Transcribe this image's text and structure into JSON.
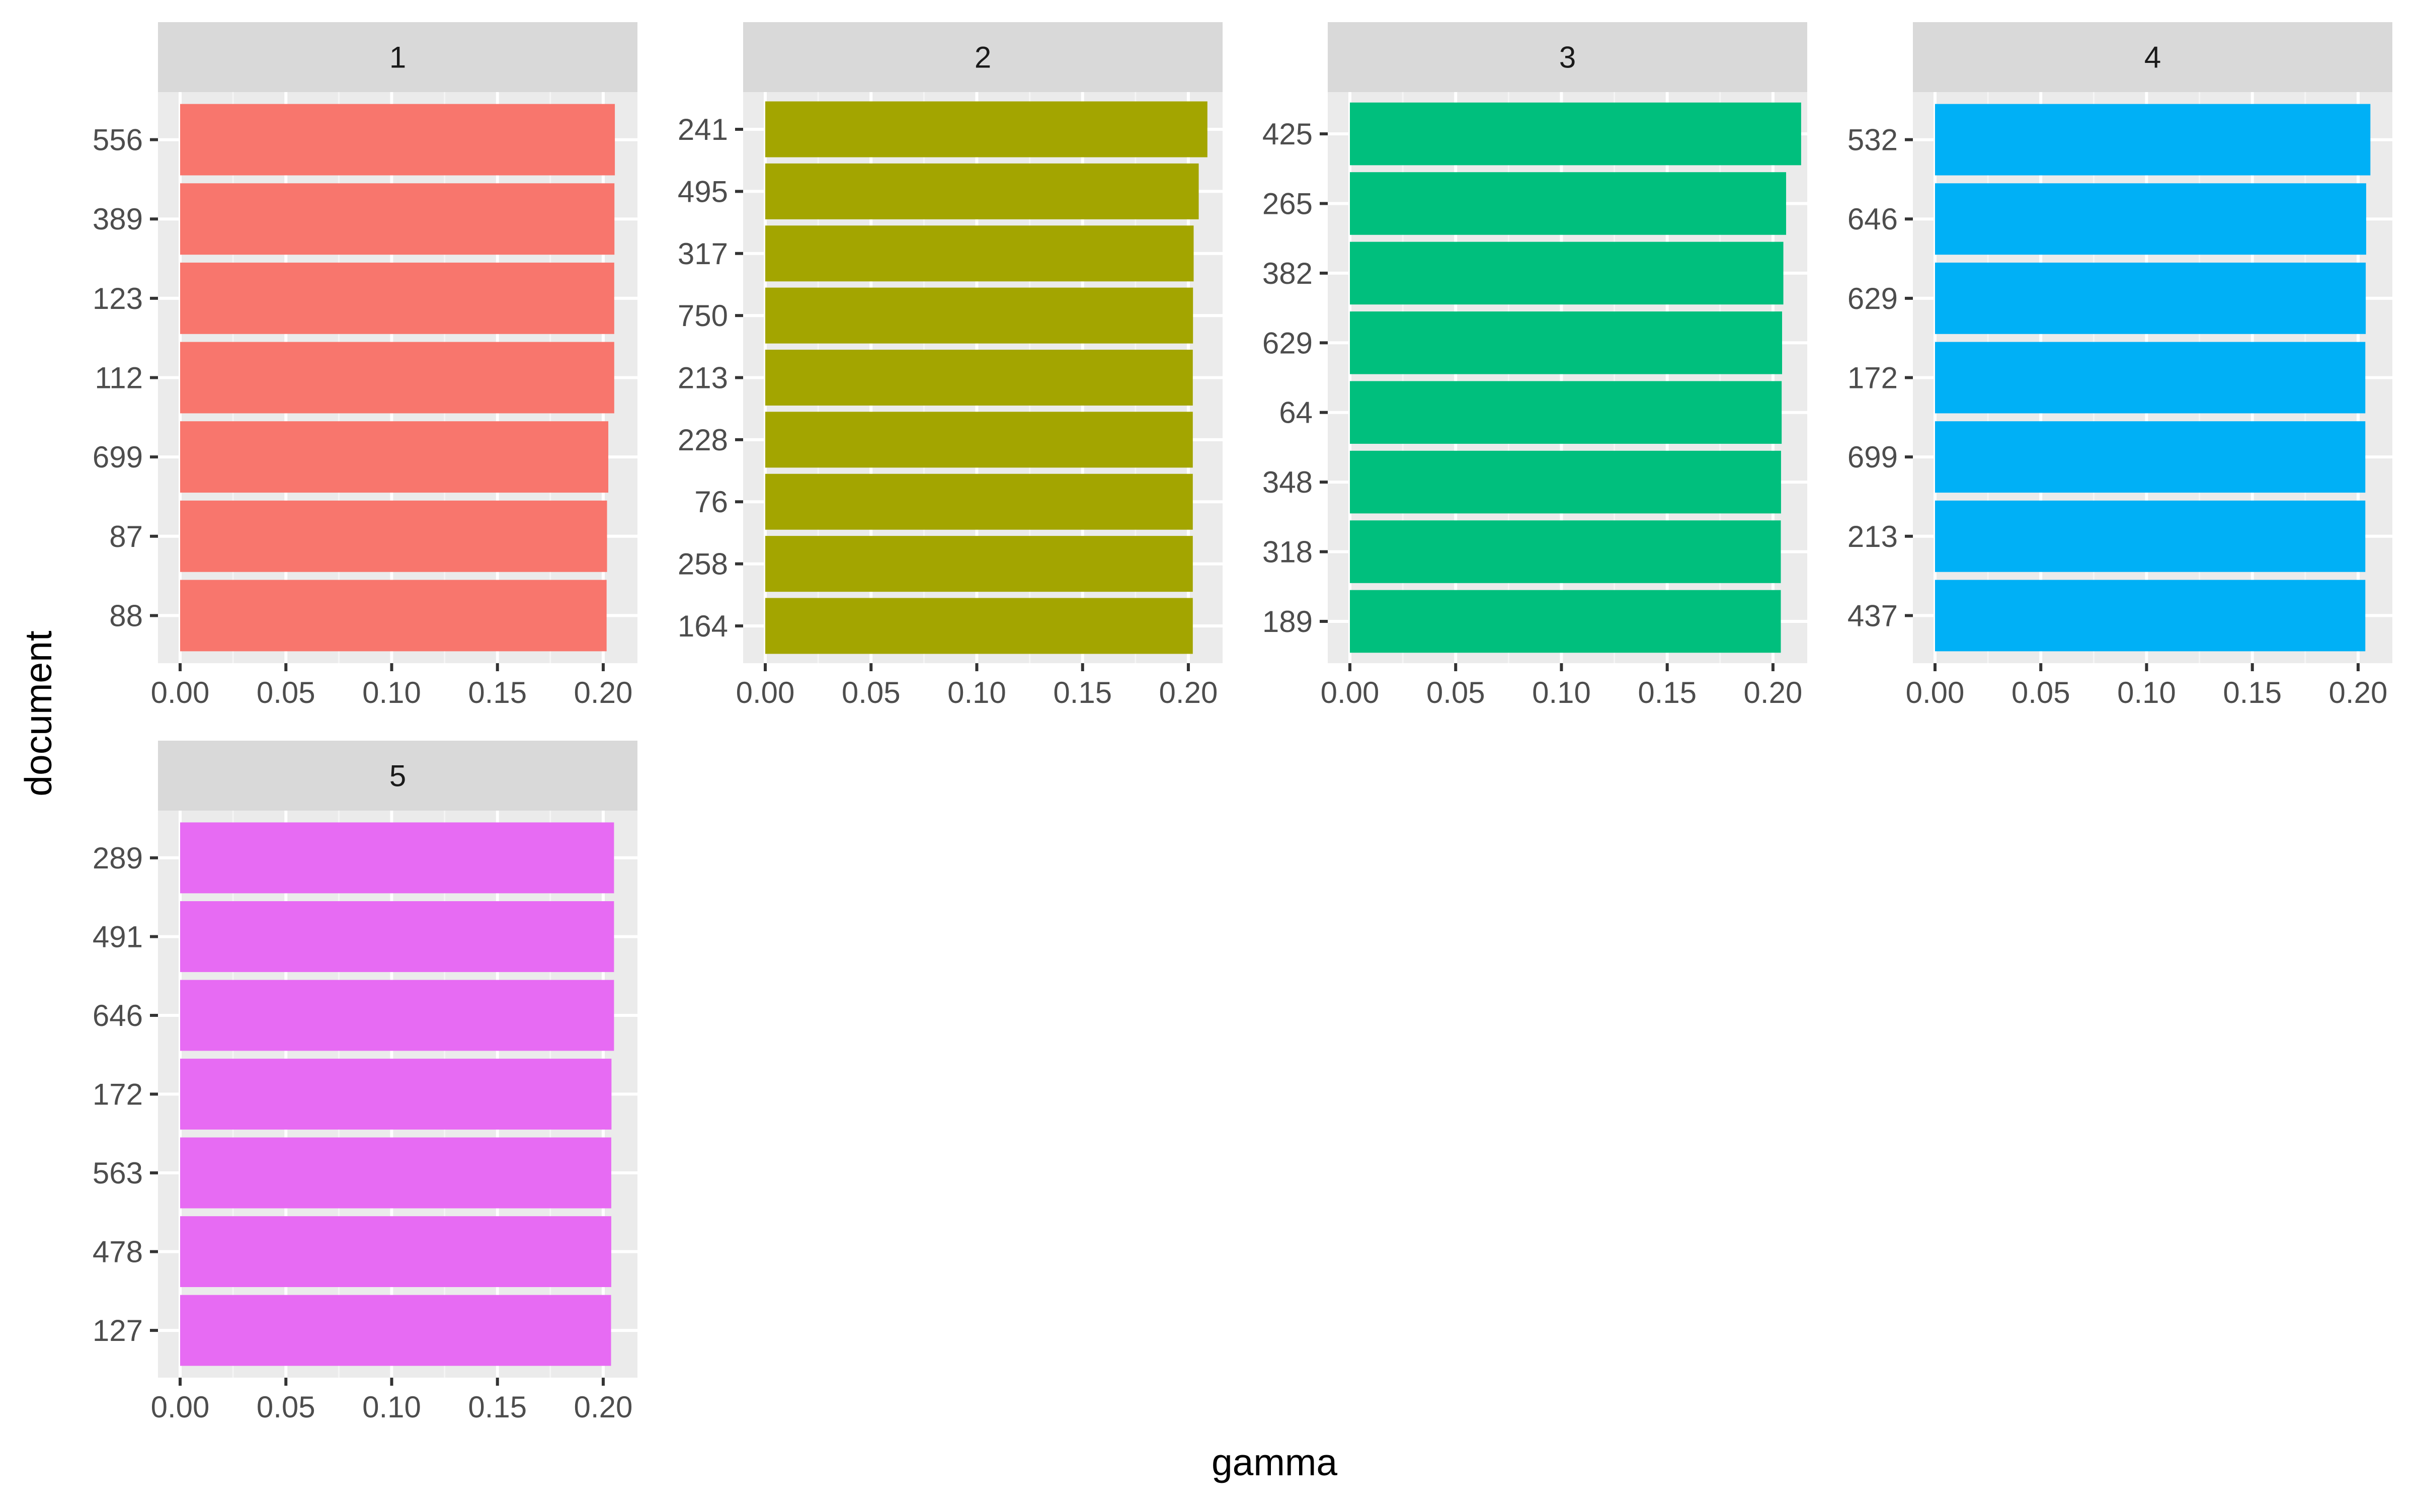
{
  "chart_data": {
    "type": "bar",
    "orientation": "horizontal",
    "layout": "facet_wrap",
    "xlabel": "gamma",
    "ylabel": "document",
    "xlim": [
      0,
      0.21
    ],
    "x_ticks": [
      "0.00",
      "0.05",
      "0.10",
      "0.15",
      "0.20"
    ],
    "x_tick_values": [
      0,
      0.05,
      0.1,
      0.15,
      0.2
    ],
    "grid": true,
    "panel_background": "#ebebeb",
    "strip_background": "#d9d9d9",
    "facets": [
      {
        "label": "1",
        "color": "#F8766D",
        "categories": [
          "556",
          "389",
          "123",
          "112",
          "699",
          "87",
          "88"
        ],
        "values": [
          0.2055,
          0.2053,
          0.2052,
          0.2052,
          0.2024,
          0.2018,
          0.2016
        ]
      },
      {
        "label": "2",
        "color": "#A3A500",
        "categories": [
          "241",
          "495",
          "317",
          "750",
          "213",
          "228",
          "76",
          "258",
          "164"
        ],
        "values": [
          0.209,
          0.2049,
          0.2025,
          0.2022,
          0.2021,
          0.2021,
          0.2021,
          0.2021,
          0.2021
        ]
      },
      {
        "label": "3",
        "color": "#00BF7D",
        "categories": [
          "425",
          "265",
          "382",
          "629",
          "64",
          "348",
          "318",
          "189"
        ],
        "values": [
          0.2133,
          0.2062,
          0.2049,
          0.2043,
          0.2041,
          0.2038,
          0.2037,
          0.2037
        ]
      },
      {
        "label": "4",
        "color": "#00B0F6",
        "categories": [
          "532",
          "646",
          "629",
          "172",
          "699",
          "213",
          "437"
        ],
        "values": [
          0.2058,
          0.2038,
          0.2036,
          0.2034,
          0.2034,
          0.2034,
          0.2034
        ]
      },
      {
        "label": "5",
        "color": "#E76BF3",
        "categories": [
          "289",
          "491",
          "646",
          "172",
          "563",
          "478",
          "127"
        ],
        "values": [
          0.2051,
          0.2051,
          0.2051,
          0.2039,
          0.2038,
          0.2038,
          0.2037
        ]
      }
    ]
  }
}
